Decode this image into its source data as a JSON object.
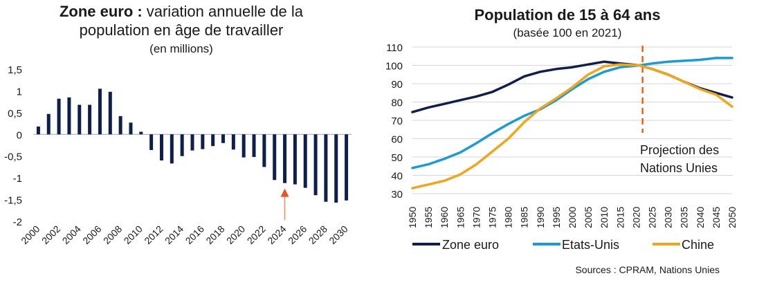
{
  "chart_data": [
    {
      "type": "bar",
      "title_bold": "Zone euro :",
      "title_rest": "variation annuelle de la",
      "title_line2": "population en âge de travailler",
      "subtitle": "(en millions)",
      "ylim": [
        -2,
        1.5
      ],
      "yticks": [
        "1,5",
        "1",
        "0,5",
        "0",
        "-0,5",
        "-1",
        "-1,5",
        "-2"
      ],
      "ytick_values": [
        1.5,
        1,
        0.5,
        0,
        -0.5,
        -1,
        -1.5,
        -2
      ],
      "xtick_labels": [
        "2000",
        "2002",
        "2004",
        "2006",
        "2008",
        "2010",
        "2012",
        "2014",
        "2016",
        "2018",
        "2020",
        "2022",
        "2024",
        "2026",
        "2028",
        "2030"
      ],
      "categories": [
        2000,
        2001,
        2002,
        2003,
        2004,
        2005,
        2006,
        2007,
        2008,
        2009,
        2010,
        2011,
        2012,
        2013,
        2014,
        2015,
        2016,
        2017,
        2018,
        2019,
        2020,
        2021,
        2022,
        2023,
        2024,
        2025,
        2026,
        2027,
        2028,
        2029,
        2030
      ],
      "values": [
        0.18,
        0.47,
        0.82,
        0.85,
        0.68,
        0.68,
        1.05,
        0.98,
        0.42,
        0.27,
        0.06,
        -0.36,
        -0.6,
        -0.67,
        -0.5,
        -0.37,
        -0.34,
        -0.27,
        -0.2,
        -0.35,
        -0.53,
        -0.52,
        -0.75,
        -1.05,
        -1.12,
        -1.15,
        -1.23,
        -1.4,
        -1.55,
        -1.57,
        -1.52
      ],
      "arrow_at": 2024,
      "bar_color": "#0d1f4a",
      "arrow_color": "#f08c5a"
    },
    {
      "type": "line",
      "title": "Population de 15 à 64 ans",
      "subtitle": "(basée 100 en 2021)",
      "ylim": [
        30,
        110
      ],
      "yticks": [
        110,
        100,
        90,
        80,
        70,
        60,
        50,
        40,
        30
      ],
      "xlim": [
        1950,
        2050
      ],
      "xticks": [
        "1950",
        "1955",
        "1960",
        "1965",
        "1970",
        "1975",
        "1980",
        "1985",
        "1990",
        "1995",
        "2000",
        "2005",
        "2010",
        "2015",
        "2020",
        "2025",
        "2030",
        "2035",
        "2040",
        "2045",
        "2050"
      ],
      "projection_year": 2022,
      "annotation_line1": "Projection des",
      "annotation_line2": "Nations Unies",
      "x": [
        1950,
        1955,
        1960,
        1965,
        1970,
        1975,
        1980,
        1985,
        1990,
        1995,
        2000,
        2005,
        2010,
        2015,
        2021,
        2025,
        2030,
        2035,
        2040,
        2045,
        2050
      ],
      "series": [
        {
          "name": "Zone euro",
          "color": "#0d1f4a",
          "values": [
            74.5,
            77,
            79,
            81,
            83,
            85.5,
            89.5,
            94,
            96.5,
            98,
            99,
            100.5,
            102,
            101,
            100,
            98,
            95,
            91,
            87.5,
            85,
            82.5
          ]
        },
        {
          "name": "Etats-Unis",
          "color": "#1a9ad6",
          "values": [
            44,
            46,
            49,
            52.5,
            57.5,
            63,
            68,
            72.5,
            76,
            81,
            87,
            92.5,
            96.5,
            99,
            100,
            101,
            102,
            102.5,
            103,
            104,
            104
          ]
        },
        {
          "name": "Chine",
          "color": "#f0a51a",
          "values": [
            33,
            35,
            37,
            40.5,
            46,
            53,
            60,
            69,
            76.5,
            82,
            88,
            95,
            99.5,
            100.5,
            100,
            98,
            95,
            91,
            87,
            84,
            77.5
          ]
        }
      ]
    }
  ],
  "legend": [
    "Zone euro",
    "Etats-Unis",
    "Chine"
  ],
  "source": "Sources : CPRAM, Nations Unies"
}
